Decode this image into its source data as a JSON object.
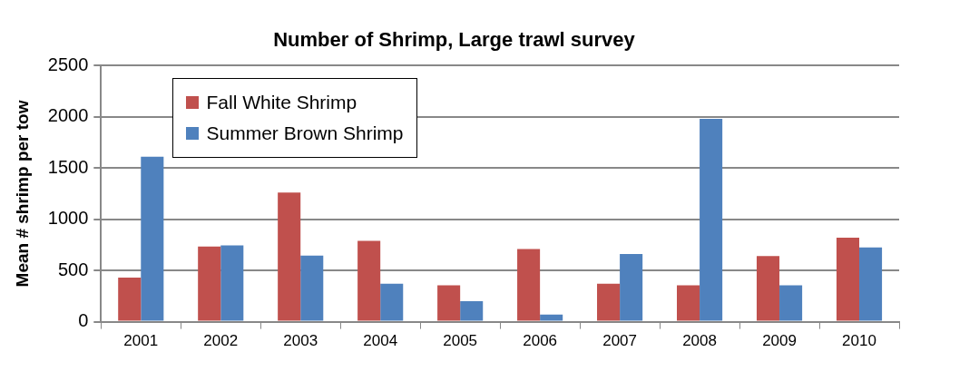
{
  "chart_data": {
    "type": "bar",
    "title": "Number of Shrimp, Large trawl survey",
    "ylabel": "Mean # shrimp per tow",
    "categories": [
      "2001",
      "2002",
      "2003",
      "2004",
      "2005",
      "2006",
      "2007",
      "2008",
      "2009",
      "2010"
    ],
    "series": [
      {
        "name": "Fall White Shrimp",
        "color": "#c0504d",
        "values": [
          430,
          735,
          1260,
          790,
          355,
          710,
          370,
          355,
          640,
          820
        ]
      },
      {
        "name": "Summer Brown Shrimp",
        "color": "#4f81bd",
        "values": [
          1610,
          745,
          645,
          370,
          200,
          70,
          660,
          1980,
          355,
          725
        ]
      }
    ],
    "ylim": [
      0,
      2500
    ],
    "yticks": [
      0,
      500,
      1000,
      1500,
      2000,
      2500
    ],
    "grid": "y",
    "legend": "top left"
  }
}
